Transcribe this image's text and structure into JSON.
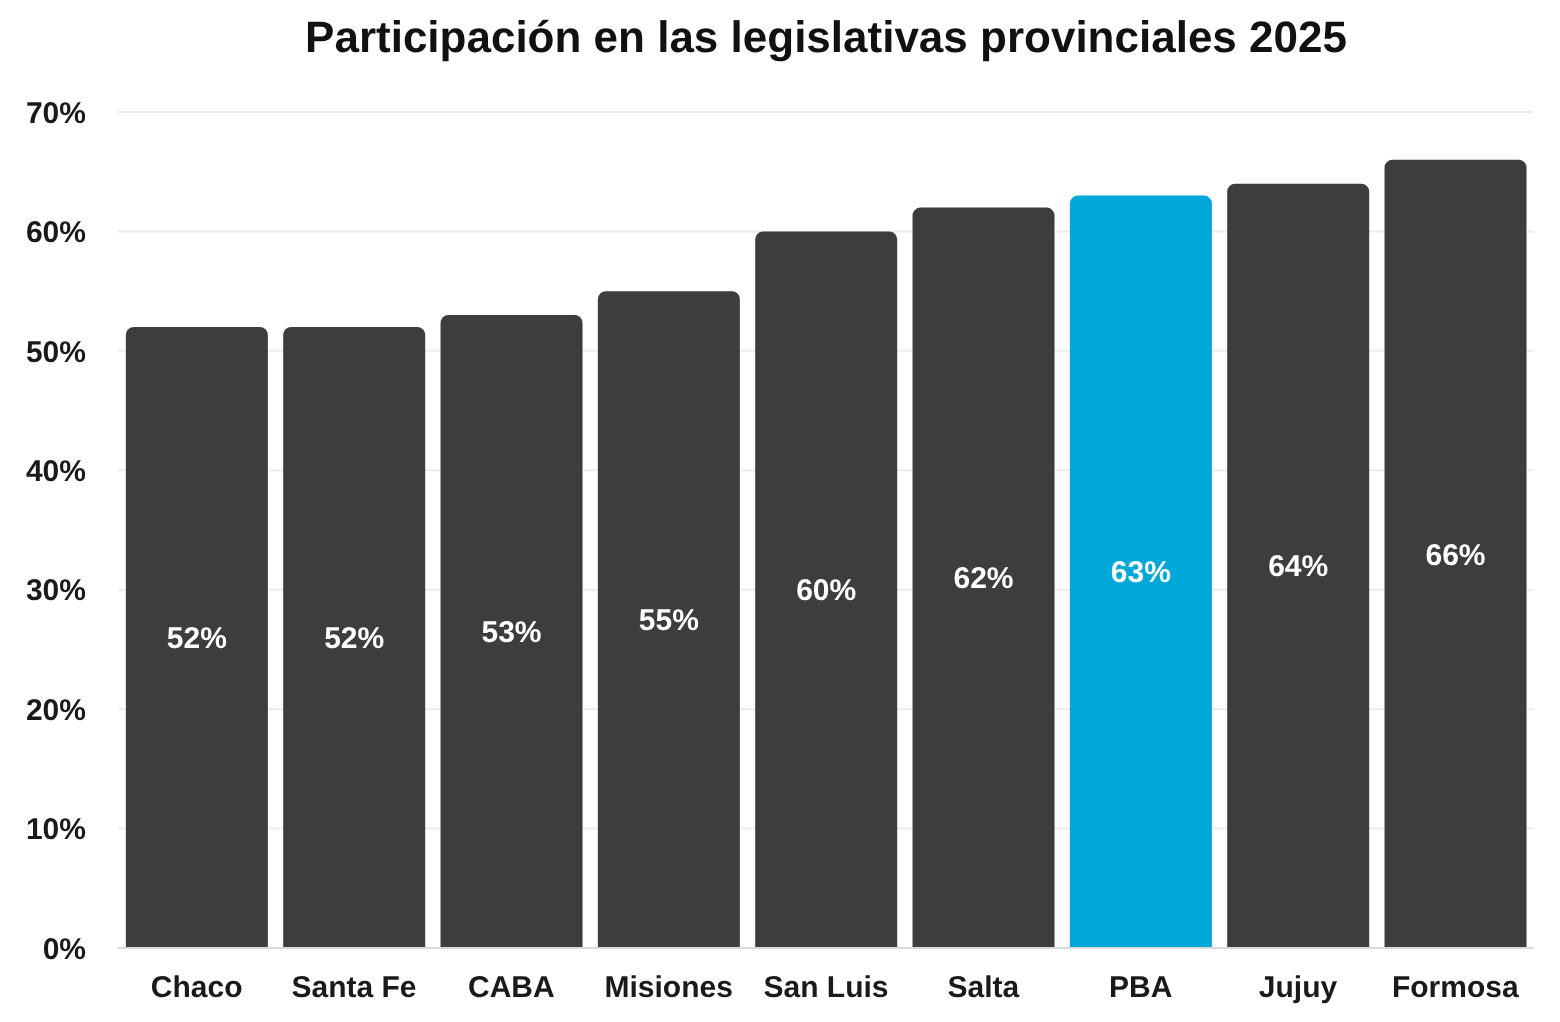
{
  "chart_data": {
    "type": "bar",
    "title": "Participación en las legislativas provinciales 2025",
    "categories": [
      "Chaco",
      "Santa Fe",
      "CABA",
      "Misiones",
      "San Luis",
      "Salta",
      "PBA",
      "Jujuy",
      "Formosa"
    ],
    "values": [
      52,
      52,
      53,
      55,
      60,
      62,
      63,
      64,
      66
    ],
    "colors": [
      "#3d3d3d",
      "#3d3d3d",
      "#3d3d3d",
      "#3d3d3d",
      "#3d3d3d",
      "#3d3d3d",
      "#00a8d9",
      "#3d3d3d",
      "#3d3d3d"
    ],
    "value_labels": [
      "52%",
      "52%",
      "53%",
      "55%",
      "60%",
      "62%",
      "63%",
      "64%",
      "66%"
    ],
    "ylim": [
      0,
      70
    ],
    "yticks": [
      {
        "value": 0,
        "label": "0%"
      },
      {
        "value": 10,
        "label": "10%"
      },
      {
        "value": 20,
        "label": "20%"
      },
      {
        "value": 30,
        "label": "30%"
      },
      {
        "value": 40,
        "label": "40%"
      },
      {
        "value": 50,
        "label": "50%"
      },
      {
        "value": 60,
        "label": "60%"
      },
      {
        "value": 70,
        "label": "70%"
      }
    ],
    "grid": "y"
  }
}
